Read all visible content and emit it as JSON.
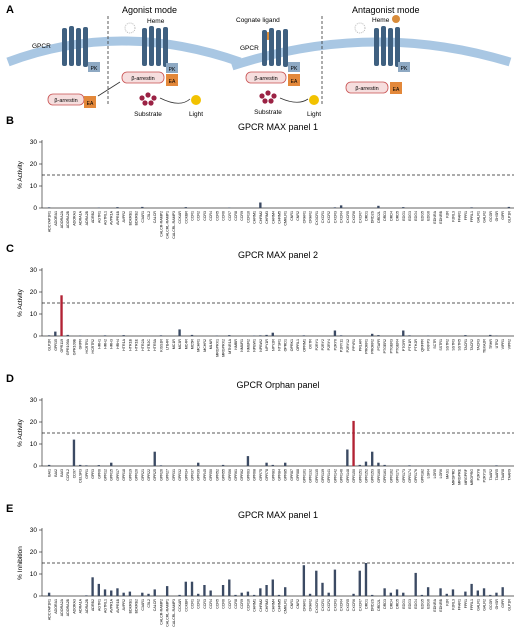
{
  "colors": {
    "bar": "#3b4a63",
    "highlight": "#b22234",
    "membrane": "#a9c7e3",
    "receptor": "#3f6080",
    "ligand": "#d98c3a",
    "ea": "#e3883a",
    "pk": "#8ea9c3",
    "arrestin_fill": "#f6dede",
    "arrestin_stroke": "#c85050",
    "substrate": "#9b2244",
    "light": "#f2c200"
  },
  "schematic": {
    "panel_letter": "A",
    "agonist_title": "Agonist mode",
    "antagonist_title": "Antagonist mode",
    "gpcr": "GPCR",
    "heme": "Heme",
    "cognate_ligand": "Cognate ligand",
    "pk": "PK",
    "ea": "EA",
    "arrestin": "β-arrestin",
    "substrate": "Substrate",
    "light": "Light"
  },
  "chart_data": [
    {
      "type": "bar",
      "panel": "B",
      "title": "GPCR MAX panel 1",
      "ylabel": "% Activity",
      "ylim": [
        0,
        30
      ],
      "yticks": [
        0,
        10,
        20,
        30
      ],
      "threshold": 15,
      "grid": false,
      "categories": [
        "ADCYAP1R1",
        "ADORA1",
        "ADORA2A",
        "ADORA2B",
        "ADORA3",
        "ADRA1A",
        "ADRA2B",
        "ADRB2",
        "AGTR1",
        "AGTRL1",
        "AVPR1A",
        "AVPR1B",
        "AVPR2",
        "BDKRB1",
        "BDKRB2",
        "C3AR1",
        "C5L2",
        "CALCR",
        "CALCR-RAMP2",
        "CALCRL-RAMP1",
        "CALCRL-RAMP3",
        "CCKAR",
        "CCKBR",
        "CCR1",
        "CCR2",
        "CCR3",
        "CCR4",
        "CCR5",
        "CCR6",
        "CCR7",
        "CCR8",
        "CCR9",
        "CCR10",
        "CHRM1",
        "CHRM2",
        "CHRM3",
        "CHRM4",
        "CHRM5",
        "CMKLR1",
        "CNR1",
        "CNR2",
        "CRHR1",
        "CRHR2",
        "CX3CR1",
        "CXCR1",
        "CXCR2",
        "CXCR3",
        "CXCR4",
        "CXCR5",
        "CXCR6",
        "CXCR7",
        "DRD1",
        "DRD2S",
        "DRD2L",
        "DRD3",
        "DRD4",
        "DRD5",
        "EDG1",
        "EDG3",
        "EDG4",
        "EDG5",
        "EDG6",
        "EDNRA",
        "EDNRB",
        "F2R",
        "F2RL3",
        "FFAR1",
        "FPR1",
        "FPRL1",
        "GALR1",
        "GALR2",
        "GCGR",
        "GHSR",
        "GIPR",
        "GLP1R"
      ],
      "values": [
        0.3,
        0,
        0,
        0,
        0,
        0,
        0,
        0,
        0.2,
        0,
        0,
        0.4,
        0,
        0,
        0,
        0.5,
        0,
        0,
        0,
        0,
        0,
        0,
        0.4,
        0,
        0,
        0,
        0,
        0,
        0,
        0.2,
        0,
        0,
        0,
        0,
        2.5,
        0,
        0,
        0,
        0,
        0,
        0,
        0,
        0,
        0,
        0,
        0,
        0.3,
        1.2,
        0,
        0,
        0,
        0,
        0,
        1.0,
        0,
        0,
        0,
        0.4,
        0,
        0,
        0,
        0,
        0,
        0,
        0,
        0,
        0,
        0,
        0.3,
        0,
        0,
        0,
        0,
        0,
        0.5
      ],
      "highlight": []
    },
    {
      "type": "bar",
      "panel": "C",
      "title": "GPCR MAX panel 2",
      "ylabel": "% Activity",
      "ylim": [
        0,
        30
      ],
      "yticks": [
        0,
        10,
        20,
        30
      ],
      "threshold": 15,
      "grid": false,
      "categories": [
        "GLP2R",
        "GPR35",
        "GPR119",
        "GPR109A",
        "GPR109B",
        "GRPR",
        "HCRTR1",
        "HCRTR2",
        "HRH1",
        "HRH2",
        "HRH3",
        "HRH4",
        "HTR1A",
        "HTR1B",
        "HTR1E",
        "HTR2A",
        "HTR2C",
        "HTR5A",
        "KISS1R",
        "LTB4R",
        "MC1R",
        "MC3R",
        "MC4R",
        "MC5R",
        "MCHR1",
        "MCHR2",
        "MLNR",
        "MRGPRX1",
        "MRGPRX2",
        "MTNR1A",
        "NMBR",
        "NMUR1",
        "NMUR2",
        "NPBW1",
        "NPBW2",
        "NPY1R",
        "NPY2R",
        "NTSR1",
        "OPRD1",
        "OPRK1",
        "OPRL1",
        "OPRM1",
        "OXTR",
        "P2RY1",
        "P2RY2",
        "P2RY4",
        "P2RY6",
        "P2RY11",
        "P2RY12",
        "PPYR1",
        "PRLHR",
        "PROKR1",
        "PROKR2",
        "PTAFR",
        "PTGER2",
        "PTGER3",
        "PTGER4",
        "PTGFR",
        "PTH1R",
        "PTH2R",
        "QRFPR",
        "RXFP3",
        "SCTR",
        "SSTR1",
        "SSTR2",
        "SSTR3",
        "SSTR5",
        "TACR1",
        "TACR2",
        "TACR3",
        "TBXA2R",
        "TRHR",
        "UTR2",
        "VIPR1",
        "VIPR2"
      ],
      "values": [
        0.3,
        2.0,
        18.5,
        0.5,
        0,
        0.2,
        0,
        0,
        0,
        0.3,
        0,
        0,
        0.4,
        0,
        0,
        0,
        0,
        0,
        0.3,
        0,
        0,
        3.0,
        0,
        0.5,
        0,
        0,
        0,
        0.2,
        0,
        0.4,
        0,
        0,
        0,
        0.2,
        0.3,
        0.5,
        1.5,
        0,
        0,
        0,
        0,
        0.3,
        0,
        0,
        0,
        0,
        2.5,
        0.3,
        0,
        0,
        0,
        0,
        1.0,
        0.4,
        0,
        0,
        0,
        2.5,
        0.3,
        0,
        0,
        0.2,
        0,
        0,
        0,
        0,
        0,
        0.4,
        0,
        0,
        0,
        0.5,
        0.2,
        0,
        0
      ],
      "highlight": [
        2
      ]
    },
    {
      "type": "bar",
      "panel": "D",
      "title": "GPCR Orphan panel",
      "ylabel": "% Activity",
      "ylim": [
        0,
        30
      ],
      "yticks": [
        0,
        10,
        20,
        30
      ],
      "threshold": 15,
      "grid": false,
      "categories": [
        "BAI1",
        "BAI2",
        "BAI3",
        "CCRL2",
        "CD97",
        "CELSR3",
        "GPR1",
        "GPR3",
        "GPR6",
        "GPR12",
        "GPR15",
        "GPR17",
        "GPR18",
        "GPR19",
        "GPR20",
        "GPR21",
        "GPR22",
        "GPR25",
        "GPR26",
        "GPR27",
        "GPR31",
        "GPR32",
        "GPR34",
        "GPR37",
        "GPR39",
        "GPR45",
        "GPR50",
        "GPR52",
        "GPR55",
        "GPR56",
        "GPR61",
        "GPR62",
        "GPR63",
        "GPR68",
        "GPR75",
        "GPR78",
        "GPR83",
        "GPR84",
        "GPR85",
        "GPR87",
        "GPR88",
        "GPR101",
        "GPR132",
        "GPR135",
        "GPR139",
        "GPR141",
        "GPR142",
        "GPR146",
        "GPR148",
        "GPR150",
        "GPR151",
        "GPR152",
        "GPR153",
        "GPR160",
        "GPR161",
        "GPR162",
        "GPR171",
        "GPR173",
        "GPR174",
        "GPR176",
        "GPR182",
        "LGR4",
        "LGR5",
        "LGR6",
        "MAS1",
        "MRGPRD",
        "MRGPRE",
        "MRGPRF",
        "MRGPRG",
        "P2RY8",
        "P2RY10",
        "TAAR2",
        "TAAR5",
        "TAAR8",
        "TAAR9"
      ],
      "values": [
        0.5,
        0,
        0,
        0,
        12.0,
        0.5,
        0.3,
        0,
        0.4,
        0,
        1.5,
        0,
        0,
        0,
        0,
        0,
        0,
        6.5,
        0.3,
        0,
        0,
        0,
        0,
        0,
        1.5,
        0,
        0,
        0,
        0.5,
        0,
        0,
        0,
        4.5,
        0,
        0,
        1.5,
        0.5,
        0,
        1.5,
        0,
        0,
        0,
        0,
        0,
        0,
        0,
        0,
        0,
        7.5,
        20.5,
        0.5,
        2.0,
        6.5,
        1.5,
        0.5,
        0,
        0,
        0,
        0.3,
        0,
        0,
        0,
        0,
        0,
        0,
        0,
        0.2,
        0,
        0,
        0,
        0,
        0,
        0.3,
        0,
        0
      ],
      "highlight": [
        49
      ]
    },
    {
      "type": "bar",
      "panel": "E",
      "title": "GPCR MAX panel 1",
      "ylabel": "% Inhibition",
      "ylim": [
        0,
        30
      ],
      "yticks": [
        0,
        10,
        20,
        30
      ],
      "threshold": 15,
      "grid": false,
      "categories": [
        "ADCYAP1R1",
        "ADORA1",
        "ADORA2A",
        "ADORA2B",
        "ADORA3",
        "ADRA1A",
        "ADRA2B",
        "ADRB2",
        "AGTR1",
        "AGTRL1",
        "AVPR1A",
        "AVPR1B",
        "AVPR2",
        "BDKRB1",
        "BDKRB2",
        "C3AR1",
        "C5L2",
        "CALCR",
        "CALCR-RAMP2",
        "CALCRL-RAMP1",
        "CALCRL-RAMP3",
        "CCKAR",
        "CCKBR",
        "CCR1",
        "CCR2",
        "CCR3",
        "CCR4",
        "CCR5",
        "CCR6",
        "CCR7",
        "CCR8",
        "CCR9",
        "CCR10",
        "CHRM1",
        "CHRM2",
        "CHRM3",
        "CHRM4",
        "CHRM5",
        "CMKLR1",
        "CNR1",
        "CNR2",
        "CRHR1",
        "CRHR2",
        "CX3CR1",
        "CXCR1",
        "CXCR2",
        "CXCR3",
        "CXCR4",
        "CXCR5",
        "CXCR6",
        "CXCR7",
        "DRD1",
        "DRD2S",
        "DRD2L",
        "DRD3",
        "DRD4",
        "DRD5",
        "EDG1",
        "EDG3",
        "EDG4",
        "EDG5",
        "EDG6",
        "EDNRA",
        "EDNRB",
        "F2R",
        "F2RL3",
        "FFAR1",
        "FPR1",
        "FPRL1",
        "GALR1",
        "GALR2",
        "GCGR",
        "GHSR",
        "GIPR",
        "GLP1R"
      ],
      "values": [
        1.5,
        0,
        0,
        0,
        0,
        0,
        0.3,
        8.5,
        5.5,
        3.0,
        2.5,
        3.5,
        1.5,
        2.0,
        0,
        1.5,
        1.0,
        3.0,
        0,
        4.5,
        0,
        0.5,
        6.5,
        6.5,
        1.0,
        5.0,
        2.5,
        0,
        5.0,
        7.5,
        0.5,
        1.5,
        2.0,
        0.5,
        3.5,
        5.0,
        7.5,
        0.5,
        4.0,
        0,
        0,
        14.0,
        1.0,
        11.5,
        6.0,
        1.5,
        12.0,
        0,
        0,
        1.0,
        11.5,
        15.0,
        0.5,
        0,
        3.5,
        1.5,
        3.0,
        1.5,
        0,
        10.5,
        0.5,
        4.0,
        0,
        3.5,
        1.0,
        3.0,
        0,
        2.0,
        5.5,
        2.5,
        3.5,
        0.5,
        1.5,
        4.0,
        0
      ],
      "highlight": []
    }
  ]
}
